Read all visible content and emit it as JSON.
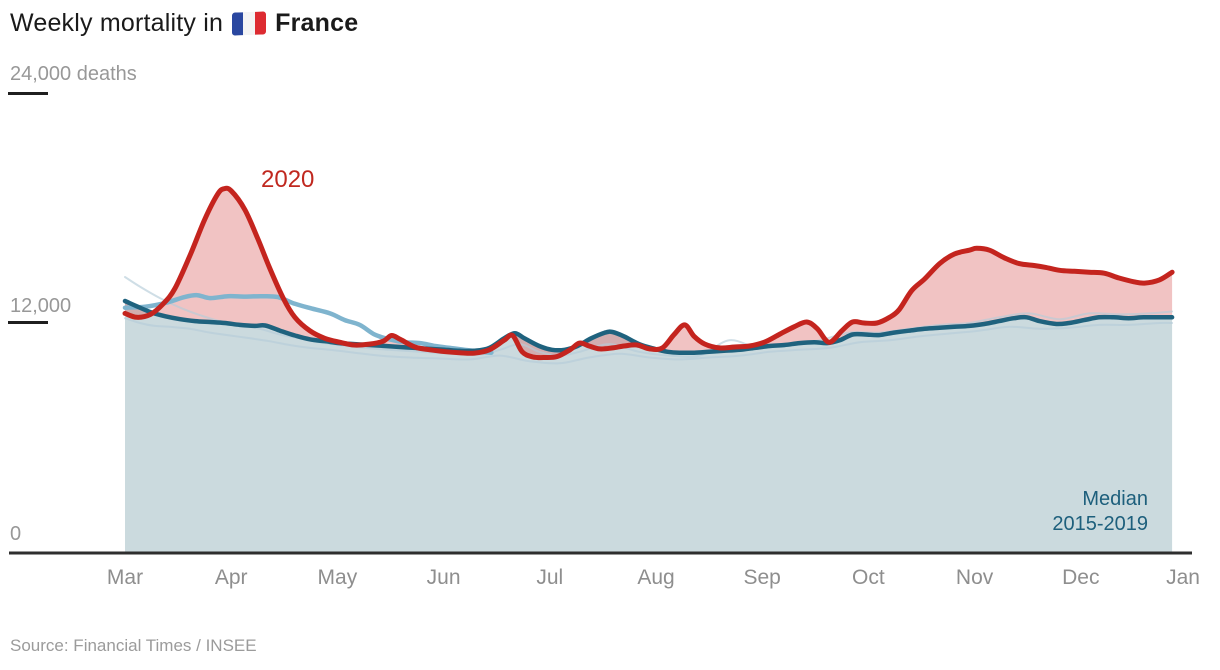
{
  "title": {
    "prefix": "Weekly mortality in",
    "country": "France",
    "flag": "france-flag"
  },
  "y_axis": {
    "top_label": "24,000 deaths",
    "mid_label": "12,000",
    "zero_label": "0"
  },
  "x_axis": {
    "months": [
      "Mar",
      "Apr",
      "May",
      "Jun",
      "Jul",
      "Aug",
      "Sep",
      "Oct",
      "Nov",
      "Dec",
      "Jan"
    ]
  },
  "annotations": {
    "line_2020": "2020",
    "median_line1": "Median",
    "median_line2": "2015-2019"
  },
  "source": "Source: Financial Times / INSEE",
  "colors": {
    "red_line": "#c4241e",
    "pink_fill_rgba": "rgba(219,105,106,0.40)",
    "median_line": "#1f627e",
    "blue_fill": "#cbdade",
    "year_line": "#7fb4ce",
    "faint_line": "#b5cdd9",
    "axis": "#2e2e2e",
    "label_2020": "#c0281f",
    "label_median": "#1d5f7c"
  },
  "chart_data": {
    "type": "area",
    "title": "Weekly mortality in France",
    "unit": "deaths per week",
    "x_unit": "months since Mar 1 (0 = Mar, 10 = Jan)",
    "ylim": [
      0,
      24000
    ],
    "yticks": [
      0,
      12000,
      24000
    ],
    "grid": false,
    "legend_position": "annotations on chart",
    "series": [
      {
        "name": "2020",
        "role": "red-line",
        "points": [
          [
            0,
            12500
          ],
          [
            0.11,
            12300
          ],
          [
            0.24,
            12450
          ],
          [
            0.36,
            13000
          ],
          [
            0.47,
            13800
          ],
          [
            0.61,
            15500
          ],
          [
            0.75,
            17400
          ],
          [
            0.87,
            18700
          ],
          [
            0.93,
            19000
          ],
          [
            1.0,
            18900
          ],
          [
            1.13,
            17900
          ],
          [
            1.25,
            16400
          ],
          [
            1.36,
            14900
          ],
          [
            1.49,
            13300
          ],
          [
            1.6,
            12300
          ],
          [
            1.74,
            11600
          ],
          [
            1.88,
            11200
          ],
          [
            2.02,
            11000
          ],
          [
            2.16,
            10850
          ],
          [
            2.3,
            10900
          ],
          [
            2.43,
            11050
          ],
          [
            2.51,
            11350
          ],
          [
            2.59,
            11150
          ],
          [
            2.73,
            10750
          ],
          [
            2.87,
            10600
          ],
          [
            3.03,
            10500
          ],
          [
            3.15,
            10450
          ],
          [
            3.29,
            10430
          ],
          [
            3.43,
            10600
          ],
          [
            3.57,
            11100
          ],
          [
            3.65,
            11350
          ],
          [
            3.74,
            10500
          ],
          [
            3.84,
            10230
          ],
          [
            3.95,
            10200
          ],
          [
            4.07,
            10250
          ],
          [
            4.19,
            10600
          ],
          [
            4.28,
            10950
          ],
          [
            4.37,
            10800
          ],
          [
            4.47,
            10650
          ],
          [
            4.59,
            10700
          ],
          [
            4.7,
            10800
          ],
          [
            4.82,
            10850
          ],
          [
            4.94,
            10650
          ],
          [
            5.06,
            10700
          ],
          [
            5.17,
            11400
          ],
          [
            5.27,
            11900
          ],
          [
            5.36,
            11300
          ],
          [
            5.46,
            10900
          ],
          [
            5.6,
            10700
          ],
          [
            5.74,
            10750
          ],
          [
            5.88,
            10800
          ],
          [
            6.02,
            11000
          ],
          [
            6.16,
            11400
          ],
          [
            6.3,
            11800
          ],
          [
            6.42,
            12050
          ],
          [
            6.52,
            11700
          ],
          [
            6.63,
            11000
          ],
          [
            6.75,
            11600
          ],
          [
            6.85,
            12050
          ],
          [
            6.96,
            12000
          ],
          [
            7.08,
            12000
          ],
          [
            7.2,
            12300
          ],
          [
            7.29,
            12700
          ],
          [
            7.41,
            13700
          ],
          [
            7.53,
            14300
          ],
          [
            7.67,
            15100
          ],
          [
            7.81,
            15600
          ],
          [
            7.95,
            15800
          ],
          [
            8.02,
            15900
          ],
          [
            8.14,
            15800
          ],
          [
            8.28,
            15400
          ],
          [
            8.42,
            15100
          ],
          [
            8.56,
            15000
          ],
          [
            8.67,
            14900
          ],
          [
            8.8,
            14750
          ],
          [
            8.94,
            14700
          ],
          [
            9.08,
            14650
          ],
          [
            9.22,
            14600
          ],
          [
            9.36,
            14350
          ],
          [
            9.5,
            14150
          ],
          [
            9.6,
            14080
          ],
          [
            9.74,
            14250
          ],
          [
            9.86,
            14650
          ]
        ]
      },
      {
        "name": "Median 2015-2019",
        "role": "median-line-with-fill",
        "points": [
          [
            0,
            13150
          ],
          [
            0.12,
            12850
          ],
          [
            0.25,
            12550
          ],
          [
            0.38,
            12350
          ],
          [
            0.52,
            12200
          ],
          [
            0.66,
            12100
          ],
          [
            0.8,
            12050
          ],
          [
            0.94,
            12000
          ],
          [
            1.08,
            11900
          ],
          [
            1.22,
            11850
          ],
          [
            1.32,
            11870
          ],
          [
            1.46,
            11600
          ],
          [
            1.6,
            11350
          ],
          [
            1.74,
            11150
          ],
          [
            1.88,
            11050
          ],
          [
            2.02,
            10950
          ],
          [
            2.16,
            10900
          ],
          [
            2.3,
            10850
          ],
          [
            2.45,
            10800
          ],
          [
            2.59,
            10750
          ],
          [
            2.73,
            10700
          ],
          [
            2.87,
            10650
          ],
          [
            3.01,
            10600
          ],
          [
            3.15,
            10550
          ],
          [
            3.29,
            10550
          ],
          [
            3.43,
            10700
          ],
          [
            3.57,
            11200
          ],
          [
            3.67,
            11470
          ],
          [
            3.76,
            11200
          ],
          [
            3.9,
            10800
          ],
          [
            4.02,
            10600
          ],
          [
            4.14,
            10600
          ],
          [
            4.26,
            10800
          ],
          [
            4.39,
            11200
          ],
          [
            4.52,
            11500
          ],
          [
            4.59,
            11530
          ],
          [
            4.7,
            11300
          ],
          [
            4.84,
            10900
          ],
          [
            4.99,
            10650
          ],
          [
            5.11,
            10500
          ],
          [
            5.22,
            10450
          ],
          [
            5.36,
            10450
          ],
          [
            5.5,
            10500
          ],
          [
            5.64,
            10550
          ],
          [
            5.79,
            10600
          ],
          [
            5.93,
            10700
          ],
          [
            6.07,
            10800
          ],
          [
            6.21,
            10850
          ],
          [
            6.35,
            10950
          ],
          [
            6.49,
            11000
          ],
          [
            6.61,
            10950
          ],
          [
            6.73,
            11100
          ],
          [
            6.85,
            11400
          ],
          [
            6.97,
            11400
          ],
          [
            7.1,
            11370
          ],
          [
            7.24,
            11500
          ],
          [
            7.38,
            11600
          ],
          [
            7.53,
            11700
          ],
          [
            7.67,
            11750
          ],
          [
            7.81,
            11800
          ],
          [
            7.95,
            11850
          ],
          [
            8.09,
            11950
          ],
          [
            8.23,
            12100
          ],
          [
            8.37,
            12250
          ],
          [
            8.49,
            12300
          ],
          [
            8.61,
            12100
          ],
          [
            8.77,
            11950
          ],
          [
            8.89,
            12000
          ],
          [
            9.03,
            12150
          ],
          [
            9.17,
            12300
          ],
          [
            9.31,
            12300
          ],
          [
            9.45,
            12250
          ],
          [
            9.59,
            12300
          ],
          [
            9.74,
            12300
          ],
          [
            9.86,
            12300
          ]
        ]
      },
      {
        "name": "2015-2019 individual year (visible light blue)",
        "role": "year-line",
        "points": [
          [
            0,
            12800
          ],
          [
            0.19,
            12850
          ],
          [
            0.38,
            13050
          ],
          [
            0.56,
            13350
          ],
          [
            0.68,
            13450
          ],
          [
            0.8,
            13300
          ],
          [
            0.97,
            13400
          ],
          [
            1.13,
            13380
          ],
          [
            1.29,
            13400
          ],
          [
            1.44,
            13350
          ],
          [
            1.6,
            13000
          ],
          [
            1.76,
            12750
          ],
          [
            1.93,
            12500
          ],
          [
            2.07,
            12150
          ],
          [
            2.21,
            11900
          ],
          [
            2.35,
            11400
          ],
          [
            2.49,
            11150
          ],
          [
            2.63,
            11000
          ],
          [
            2.78,
            10950
          ],
          [
            2.92,
            10800
          ],
          [
            3.06,
            10700
          ],
          [
            3.2,
            10600
          ],
          [
            3.34,
            10500
          ],
          [
            3.45,
            10450
          ]
        ]
      },
      {
        "name": "2015-2019 individual year (faint a)",
        "role": "faint-line",
        "points": [
          [
            0,
            14400
          ],
          [
            0.14,
            13900
          ],
          [
            0.33,
            13300
          ],
          [
            0.52,
            12800
          ],
          [
            0.71,
            12400
          ],
          [
            0.89,
            12100
          ],
          [
            1.08,
            11900
          ],
          [
            1.27,
            11700
          ],
          [
            1.46,
            11400
          ],
          [
            1.65,
            11200
          ],
          [
            1.83,
            11000
          ],
          [
            2.02,
            10850
          ],
          [
            2.26,
            10700
          ],
          [
            2.49,
            10600
          ],
          [
            2.78,
            10500
          ],
          [
            3.06,
            10400
          ],
          [
            3.34,
            10350
          ],
          [
            3.53,
            10600
          ],
          [
            3.72,
            10900
          ],
          [
            3.9,
            10500
          ],
          [
            4.09,
            10300
          ],
          [
            4.28,
            10500
          ],
          [
            4.56,
            10900
          ],
          [
            4.84,
            10500
          ],
          [
            5.13,
            10300
          ],
          [
            5.41,
            10300
          ],
          [
            5.69,
            11100
          ],
          [
            5.97,
            10700
          ],
          [
            6.26,
            10900
          ],
          [
            6.54,
            11100
          ],
          [
            6.82,
            11500
          ],
          [
            7.1,
            11500
          ],
          [
            7.38,
            11700
          ],
          [
            7.67,
            11900
          ],
          [
            7.95,
            12000
          ],
          [
            8.23,
            12300
          ],
          [
            8.51,
            12500
          ],
          [
            8.8,
            12200
          ],
          [
            9.08,
            12500
          ],
          [
            9.36,
            12450
          ],
          [
            9.64,
            12500
          ],
          [
            9.86,
            12600
          ]
        ]
      },
      {
        "name": "2015-2019 individual year (faint b)",
        "role": "faint-line",
        "points": [
          [
            0,
            12250
          ],
          [
            0.14,
            12000
          ],
          [
            0.28,
            11850
          ],
          [
            0.42,
            11800
          ],
          [
            0.61,
            11700
          ],
          [
            0.8,
            11500
          ],
          [
            0.99,
            11350
          ],
          [
            1.18,
            11200
          ],
          [
            1.36,
            11050
          ],
          [
            1.55,
            10850
          ],
          [
            1.74,
            10700
          ],
          [
            1.93,
            10600
          ],
          [
            2.16,
            10450
          ],
          [
            2.4,
            10300
          ],
          [
            2.68,
            10200
          ],
          [
            2.96,
            10150
          ],
          [
            3.25,
            10100
          ],
          [
            3.53,
            10300
          ],
          [
            3.81,
            10000
          ],
          [
            4.09,
            9900
          ],
          [
            4.37,
            10200
          ],
          [
            4.66,
            10400
          ],
          [
            4.94,
            10200
          ],
          [
            5.22,
            10100
          ],
          [
            5.5,
            10200
          ],
          [
            5.79,
            10300
          ],
          [
            6.07,
            10500
          ],
          [
            6.35,
            10600
          ],
          [
            6.63,
            10700
          ],
          [
            6.92,
            11000
          ],
          [
            7.2,
            11100
          ],
          [
            7.48,
            11300
          ],
          [
            7.76,
            11450
          ],
          [
            8.04,
            11600
          ],
          [
            8.33,
            11800
          ],
          [
            8.61,
            11700
          ],
          [
            8.89,
            11750
          ],
          [
            9.17,
            11900
          ],
          [
            9.45,
            11900
          ],
          [
            9.74,
            12000
          ],
          [
            9.86,
            12000
          ]
        ]
      }
    ]
  }
}
